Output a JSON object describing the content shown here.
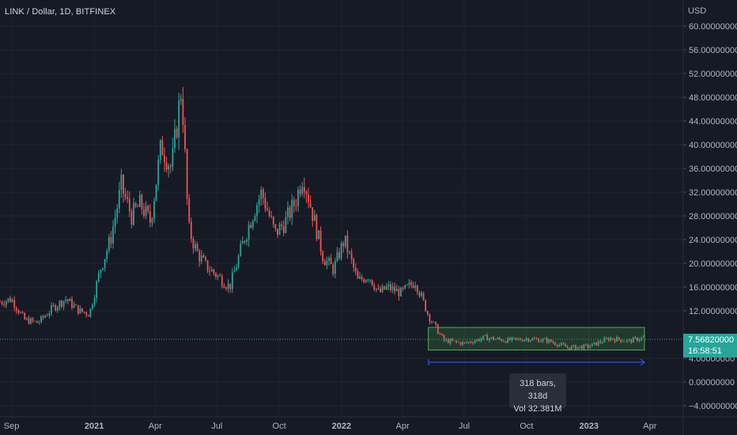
{
  "symbol": {
    "title": "LINK / Dollar, 1D, BITFINEX"
  },
  "price_axis": {
    "currency": "USD",
    "ticks": [
      "60.00000000",
      "56.00000000",
      "52.00000000",
      "48.00000000",
      "44.00000000",
      "40.00000000",
      "36.00000000",
      "32.00000000",
      "28.00000000",
      "24.00000000",
      "20.00000000",
      "16.00000000",
      "12.00000000",
      "4.00000000",
      "0.00000000",
      "−4.00000000"
    ],
    "tick_values": [
      60,
      56,
      52,
      48,
      44,
      40,
      36,
      32,
      28,
      24,
      20,
      16,
      12,
      4,
      0,
      -4
    ]
  },
  "time_axis": {
    "labels": [
      "Sep",
      "2021",
      "Apr",
      "Jul",
      "Oct",
      "2022",
      "Apr",
      "Jul",
      "Oct",
      "2023",
      "Apr"
    ],
    "bold": [
      false,
      true,
      false,
      false,
      false,
      true,
      false,
      false,
      false,
      true,
      false
    ]
  },
  "last_price": {
    "value_label": "7.56820000",
    "countdown": "16:58:51",
    "color": "#26a69a"
  },
  "measure": {
    "bars_label": "318 bars, 318d",
    "vol_label": "Vol 32.381M"
  },
  "colors": {
    "up": "#26a69a",
    "down": "#ef5350",
    "background": "#161a25",
    "range_box": "#4caf50",
    "arrow": "#2962ff"
  },
  "chart_data": {
    "type": "line",
    "title": "LINK / Dollar, 1D, BITFINEX",
    "ylabel": "USD",
    "ylim": [
      -4,
      61
    ],
    "grid": true,
    "series": [
      {
        "x": [
          "2020-08-15",
          "2020-09-01",
          "2020-09-20",
          "2020-10-10",
          "2020-11-01",
          "2020-11-20",
          "2020-12-10",
          "2020-12-25",
          "2021-01-10",
          "2021-01-25",
          "2021-02-10",
          "2021-02-25",
          "2021-03-10",
          "2021-03-25",
          "2021-04-10",
          "2021-04-25",
          "2021-05-10",
          "2021-05-20",
          "2021-06-01",
          "2021-06-15",
          "2021-07-01",
          "2021-07-20",
          "2021-08-10",
          "2021-08-25",
          "2021-09-05",
          "2021-09-25",
          "2021-10-10",
          "2021-10-25",
          "2021-11-05",
          "2021-11-20",
          "2021-12-05",
          "2021-12-20",
          "2022-01-05",
          "2022-01-25",
          "2022-02-10",
          "2022-02-25",
          "2022-03-10",
          "2022-03-30",
          "2022-04-20",
          "2022-05-10",
          "2022-06-01",
          "2022-07-01",
          "2022-08-01",
          "2022-09-01",
          "2022-10-01",
          "2022-11-01",
          "2022-12-01",
          "2023-01-01",
          "2023-02-01",
          "2023-03-01",
          "2023-03-24"
        ],
        "values": [
          13.5,
          14.0,
          10.5,
          10.0,
          12.5,
          14.0,
          12.0,
          11.5,
          19.0,
          24.0,
          33.0,
          28.0,
          30.0,
          27.0,
          40.0,
          36.0,
          50.0,
          26.0,
          22.0,
          19.5,
          18.0,
          16.0,
          24.0,
          29.0,
          32.0,
          25.0,
          27.0,
          30.5,
          35.0,
          28.0,
          21.0,
          19.0,
          24.0,
          17.0,
          18.0,
          15.0,
          16.0,
          15.0,
          17.0,
          11.0,
          7.0,
          6.5,
          7.5,
          7.0,
          7.3,
          7.0,
          5.8,
          6.0,
          7.4,
          6.9,
          7.57
        ]
      }
    ],
    "annotations": [
      {
        "type": "range",
        "label": "318 bars, 318d",
        "volume": "Vol 32.381M",
        "x_start": "2022-05-09",
        "x_end": "2023-03-24",
        "y_low": 5.4,
        "y_high": 9.2
      }
    ]
  }
}
